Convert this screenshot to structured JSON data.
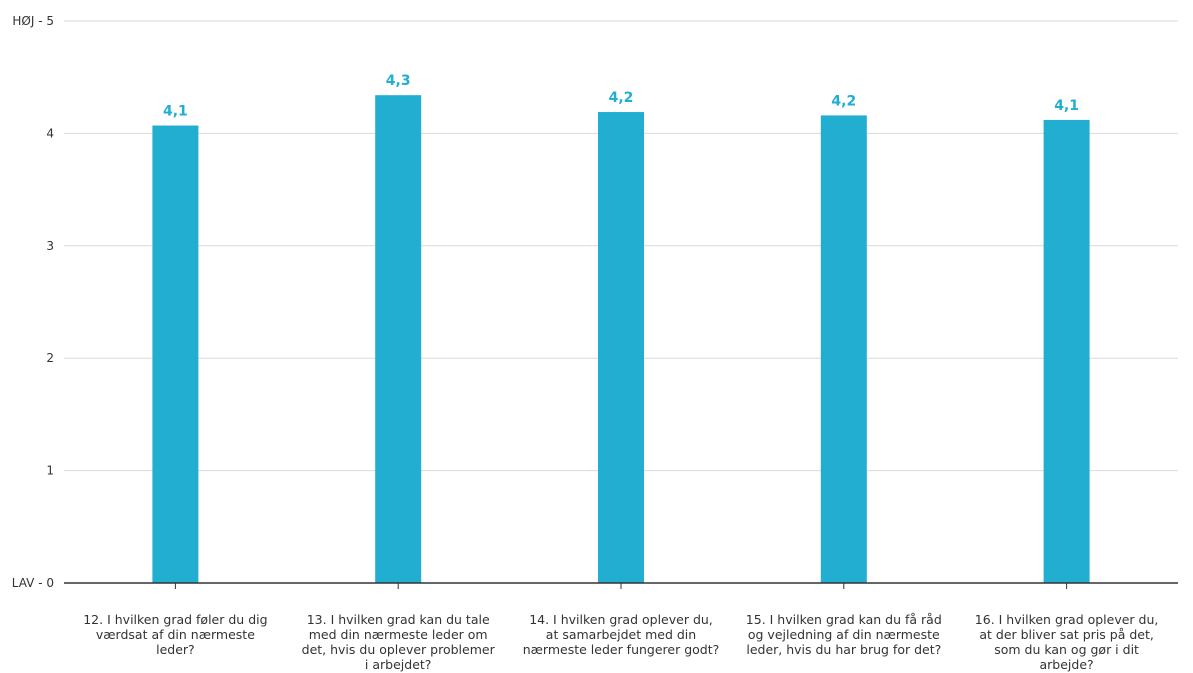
{
  "chart_data": {
    "type": "bar",
    "categories": [
      "12. I hvilken grad føler du dig værdsat af din nærmeste leder?",
      "13. I hvilken grad kan du tale med din nærmeste leder om det, hvis du oplever problemer i arbejdet?",
      "14. I hvilken grad oplever du, at samarbejdet med din nærmeste leder fungerer godt?",
      "15. I hvilken grad kan du få råd og vejledning af din nærmeste leder, hvis du har brug for det?",
      "16. I hvilken grad oplever du, at der bliver sat pris på det, som du kan og gør i dit arbejde?"
    ],
    "values": [
      4.07,
      4.34,
      4.19,
      4.16,
      4.12
    ],
    "value_labels": [
      "4,1",
      "4,3",
      "4,2",
      "4,2",
      "4,1"
    ],
    "y_ticks": [
      {
        "value": 0,
        "label": "LAV - 0"
      },
      {
        "value": 1,
        "label": "1"
      },
      {
        "value": 2,
        "label": "2"
      },
      {
        "value": 3,
        "label": "3"
      },
      {
        "value": 4,
        "label": "4"
      },
      {
        "value": 5,
        "label": "HØJ - 5"
      }
    ],
    "ylim": [
      0,
      5
    ],
    "grid": true,
    "colors": {
      "bar": "#21aed1",
      "label": "#21aed1",
      "grid": "#d9d9d9",
      "axis": "#333333"
    }
  }
}
